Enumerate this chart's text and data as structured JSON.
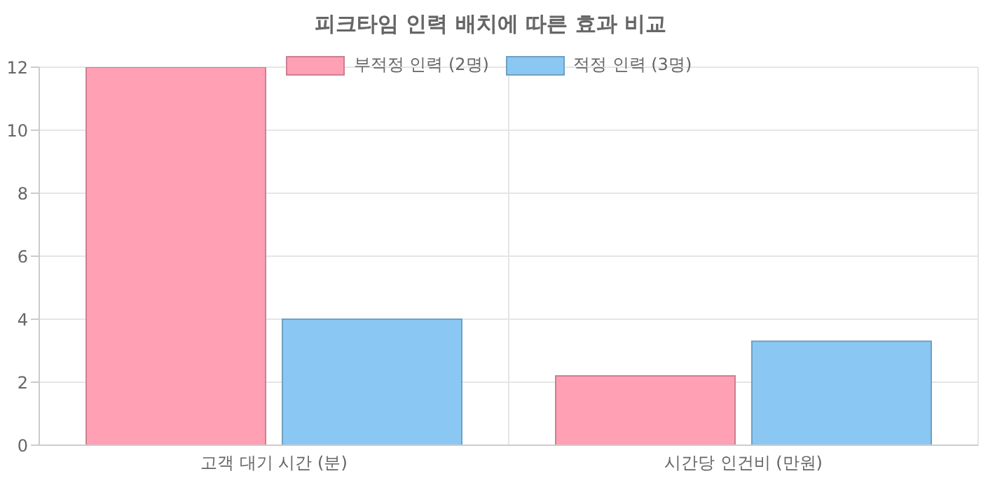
{
  "chart_data": {
    "type": "bar",
    "title": "피크타임 인력 배치에 따른 효과 비교",
    "categories": [
      "고객 대기 시간 (분)",
      "시간당 인건비 (만원)"
    ],
    "series": [
      {
        "name": "부적정 인력 (2명)",
        "color": "#ffa0b4",
        "values": [
          12,
          2.2
        ]
      },
      {
        "name": "적정 인력 (3명)",
        "color": "#8ac8f3",
        "values": [
          4,
          3.3
        ]
      }
    ],
    "ylim": [
      0,
      12
    ],
    "yticks": [
      0,
      2,
      4,
      6,
      8,
      10,
      12
    ],
    "grid": true,
    "legend": "top"
  }
}
